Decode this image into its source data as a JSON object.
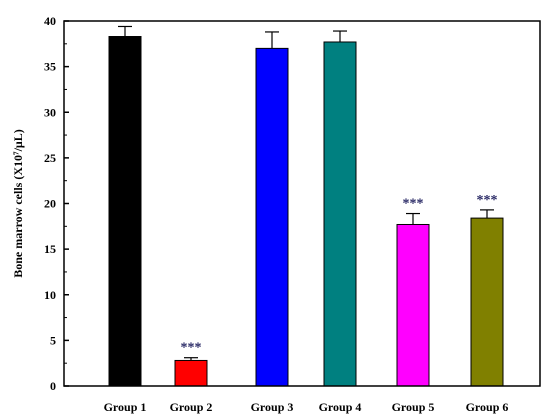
{
  "chart_data": {
    "type": "bar",
    "title": "",
    "xlabel": "",
    "ylabel": "Bone marrow cells (X10⁷/μL)",
    "ylim": [
      0,
      40
    ],
    "yticks": [
      0,
      5,
      10,
      15,
      20,
      25,
      30,
      35,
      40
    ],
    "categories": [
      "Group 1",
      "Group 2",
      "Group 3",
      "Group 4",
      "Group 5",
      "Group 6"
    ],
    "values": [
      38.3,
      2.8,
      37.0,
      37.7,
      17.7,
      18.4
    ],
    "errors": [
      1.1,
      0.3,
      1.8,
      1.2,
      1.2,
      0.9
    ],
    "significance": [
      "",
      "***",
      "",
      "",
      "***",
      "***"
    ],
    "colors": [
      "#000000",
      "#ff0000",
      "#0000ff",
      "#008080",
      "#ff00ff",
      "#808000"
    ],
    "grid": false,
    "legend": "none"
  }
}
